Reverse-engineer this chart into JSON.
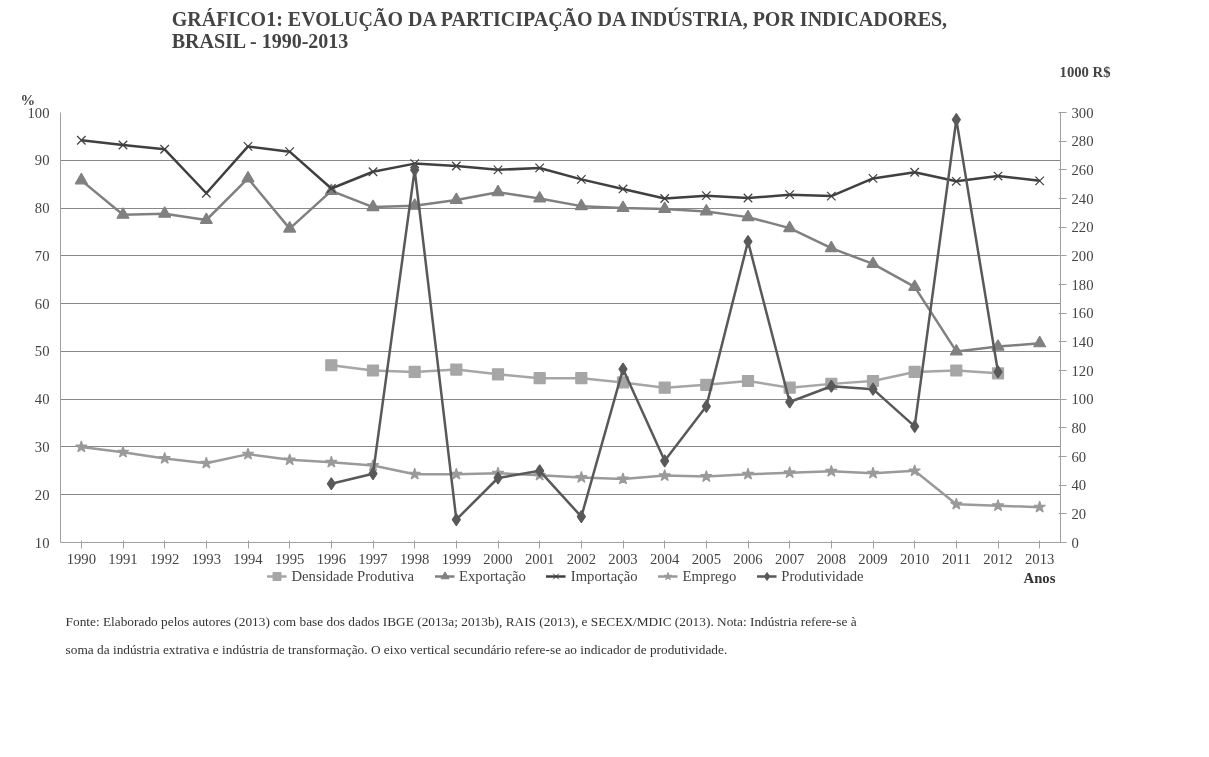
{
  "chart_data": {
    "type": "line",
    "title": "GRÁFICO1: EVOLUÇÃO DA PARTICIPAÇÃO DA INDÚSTRIA, POR INDICADORES,\nBRASIL - 1990-2013",
    "ylabel": "%",
    "y2label": "1000 R$",
    "categories": [
      "1990",
      "1991",
      "1992",
      "1993",
      "1994",
      "1995",
      "1996",
      "1997",
      "1998",
      "1999",
      "2000",
      "2001",
      "2002",
      "2003",
      "2004",
      "2005",
      "2006",
      "2007",
      "2008",
      "2009",
      "2010",
      "2011",
      "2012",
      "2013"
    ],
    "series": [
      {
        "name": "Densidade Produtiva",
        "color": "#a6a6a6",
        "marker": "square",
        "values": [
          null,
          null,
          null,
          null,
          null,
          null,
          47.1,
          46.0,
          45.7,
          46.2,
          45.2,
          44.4,
          44.4,
          43.5,
          42.4,
          43.0,
          43.8,
          42.4,
          43.2,
          43.8,
          45.7,
          46.0,
          45.4,
          null
        ]
      },
      {
        "name": "Exportação",
        "color": "#808080",
        "marker": "triangle",
        "values": [
          85.8,
          78.6,
          78.8,
          77.5,
          86.2,
          75.7,
          83.6,
          80.2,
          80.5,
          81.7,
          83.3,
          82.0,
          80.4,
          80.0,
          79.8,
          79.3,
          78.1,
          75.8,
          71.6,
          68.3,
          63.5,
          50.0,
          51.0,
          51.7
        ]
      },
      {
        "name": "Importação",
        "color": "#404040",
        "marker": "cross",
        "values": [
          94.2,
          93.2,
          92.3,
          83.1,
          92.9,
          91.8,
          84.1,
          87.6,
          89.3,
          88.8,
          88.0,
          88.4,
          86.0,
          84.0,
          82.0,
          82.6,
          82.1,
          82.8,
          82.5,
          86.2,
          87.5,
          85.6,
          86.7,
          85.7
        ]
      },
      {
        "name": "Emprego",
        "color": "#9a9a9a",
        "marker": "star",
        "values": [
          30.0,
          28.9,
          27.6,
          26.6,
          28.5,
          27.3,
          26.8,
          26.1,
          24.3,
          24.3,
          24.5,
          24.1,
          23.6,
          23.3,
          24.0,
          23.8,
          24.3,
          24.6,
          24.9,
          24.5,
          25.0,
          18.0,
          17.7,
          17.4
        ]
      },
      {
        "name": "Produtividade",
        "color": "#595959",
        "marker": "diamond",
        "axis": "y2",
        "values": [
          null,
          null,
          null,
          null,
          null,
          null,
          41,
          48,
          260,
          16,
          45,
          50,
          18,
          121,
          57,
          95,
          210,
          98,
          109,
          107,
          81,
          295,
          119,
          null
        ]
      }
    ],
    "ylim": [
      10,
      100
    ],
    "yticks": [
      10,
      20,
      30,
      40,
      50,
      60,
      70,
      80,
      90,
      100
    ],
    "y2lim": [
      0,
      300
    ],
    "y2ticks": [
      0,
      20,
      40,
      60,
      80,
      100,
      120,
      140,
      160,
      180,
      200,
      220,
      240,
      260,
      280,
      300
    ],
    "grid": "y",
    "legend": "bottom",
    "line_style": "solid",
    "annotations": [
      "Anos",
      "Fonte: Elaborado pelos autores (2013) com base dos dados IBGE (2013a; 2013b), RAIS (2013), e SECEX/MDIC (2013).  Nota: Indústria refere-se à",
      "soma da indústria extrativa e indústria de transformação. O eixo vertical secundário refere-se ao indicador de produtividade."
    ]
  }
}
